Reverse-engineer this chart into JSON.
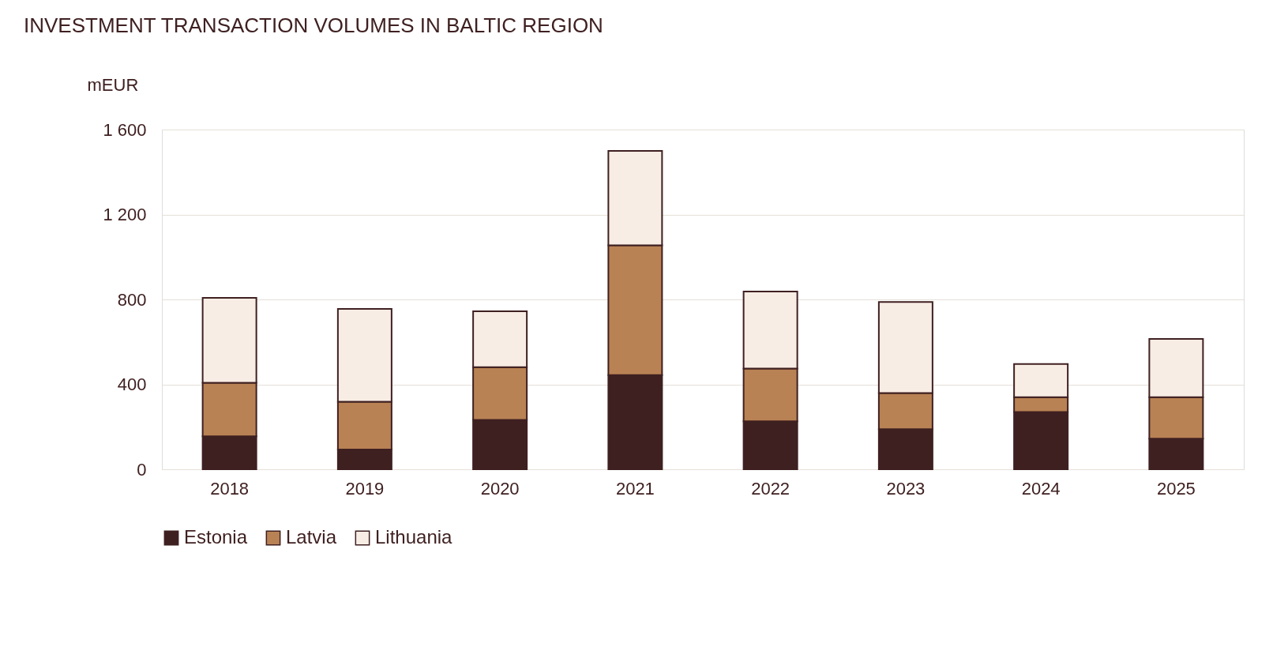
{
  "chart_data": {
    "type": "bar",
    "title": "INVESTMENT TRANSACTION VOLUMES IN BALTIC REGION",
    "ylabel": "mEUR",
    "categories": [
      "2018",
      "2019",
      "2020",
      "2021",
      "2022",
      "2023",
      "2024",
      "2025"
    ],
    "series": [
      {
        "name": "Estonia",
        "color": "#3f2021",
        "values": [
          155,
          93,
          233,
          444,
          226,
          189,
          270,
          144
        ]
      },
      {
        "name": "Latvia",
        "color": "#b98254",
        "values": [
          252,
          225,
          248,
          611,
          248,
          170,
          70,
          196
        ]
      },
      {
        "name": "Lithuania",
        "color": "#f8ede4",
        "values": [
          400,
          437,
          263,
          445,
          363,
          429,
          156,
          274
        ]
      }
    ],
    "stacked": true,
    "ylim": [
      0,
      1600
    ],
    "yticks": [
      0,
      400,
      800,
      {
        "value": 1200,
        "label": "1 200"
      },
      {
        "value": 1600,
        "label": "1 600"
      }
    ],
    "grid": "y",
    "legend": "bottom"
  }
}
